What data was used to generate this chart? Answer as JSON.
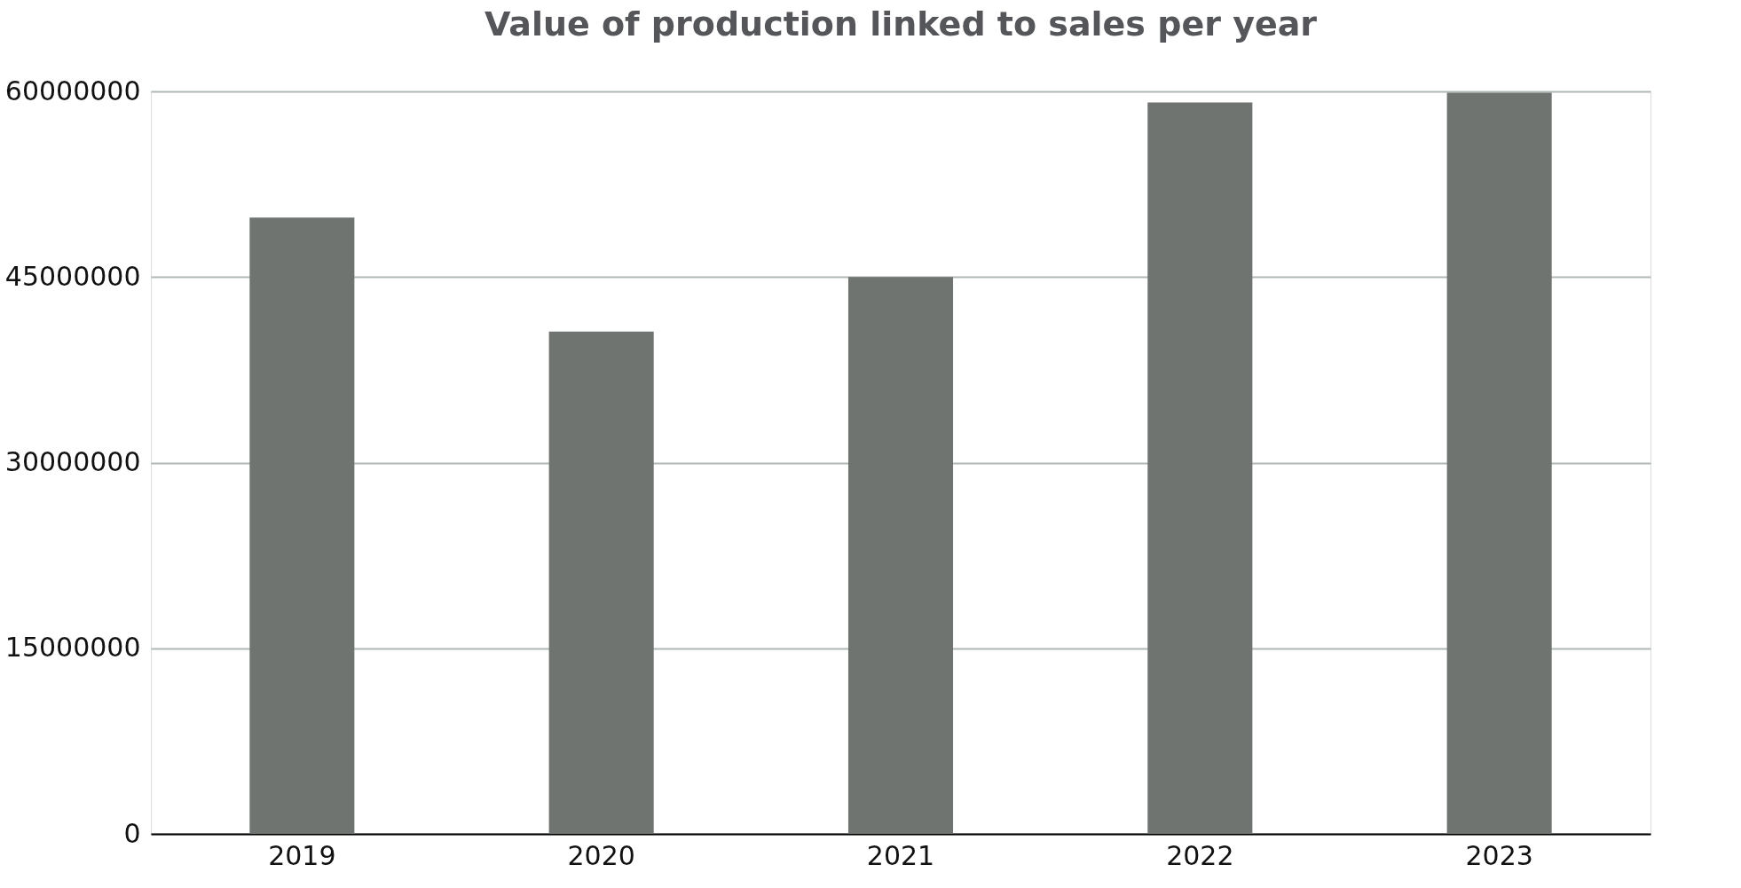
{
  "chart_data": {
    "type": "bar",
    "title": "Value of production linked to sales per year",
    "categories": [
      "2019",
      "2020",
      "2021",
      "2022",
      "2023"
    ],
    "values": [
      49800000,
      40600000,
      45000000,
      59100000,
      59900000
    ],
    "color": "#6f7471",
    "ylim": [
      0,
      60000000
    ],
    "yticks": [
      0,
      15000000,
      30000000,
      45000000,
      60000000
    ],
    "grid": "y"
  }
}
